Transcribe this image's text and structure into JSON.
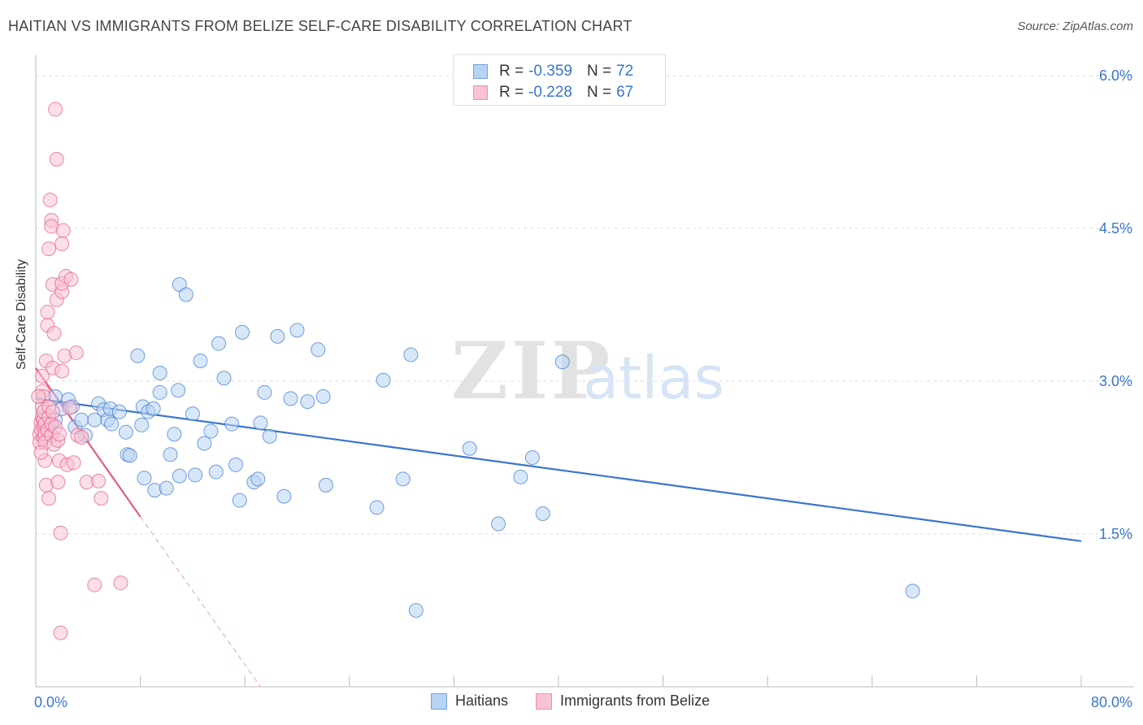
{
  "header": {
    "title": "HAITIAN VS IMMIGRANTS FROM BELIZE SELF-CARE DISABILITY CORRELATION CHART",
    "source": "Source: ZipAtlas.com"
  },
  "watermark": {
    "zip": "ZIP",
    "atlas": "atlas"
  },
  "stats_legend": [
    {
      "r_label": "R =",
      "r_value": "-0.359",
      "n_label": "N =",
      "n_value": "72",
      "color": "#6fa3e0",
      "fill": "#b8d3f3"
    },
    {
      "r_label": "R =",
      "r_value": "-0.228",
      "n_label": "N =",
      "n_value": "67",
      "color": "#ec8fae",
      "fill": "#f8c3d4"
    }
  ],
  "chart_data": {
    "type": "scatter",
    "title": "HAITIAN VS IMMIGRANTS FROM BELIZE SELF-CARE DISABILITY CORRELATION CHART",
    "xlabel": "",
    "ylabel": "Self-Care Disability",
    "xlim": [
      0,
      80
    ],
    "ylim": [
      0,
      6.2
    ],
    "x_tick_labels": [
      "0.0%",
      "80.0%"
    ],
    "y_ticks": [
      1.5,
      3.0,
      4.5,
      6.0
    ],
    "y_tick_labels": [
      "1.5%",
      "3.0%",
      "4.5%",
      "6.0%"
    ],
    "grid": true,
    "series": [
      {
        "name": "Haitians",
        "color": "#3a76c9",
        "fill": "#b8d3f3",
        "points": [
          [
            1.0,
            2.55
          ],
          [
            1.5,
            2.62
          ],
          [
            1.5,
            2.85
          ],
          [
            2.0,
            2.73
          ],
          [
            2.5,
            2.82
          ],
          [
            2.8,
            2.75
          ],
          [
            3.0,
            2.55
          ],
          [
            3.5,
            2.62
          ],
          [
            3.8,
            2.47
          ],
          [
            4.5,
            2.62
          ],
          [
            4.8,
            2.78
          ],
          [
            5.2,
            2.72
          ],
          [
            5.5,
            2.62
          ],
          [
            5.8,
            2.58
          ],
          [
            5.7,
            2.73
          ],
          [
            6.4,
            2.7
          ],
          [
            6.9,
            2.5
          ],
          [
            7.0,
            2.28
          ],
          [
            7.2,
            2.27
          ],
          [
            7.8,
            3.25
          ],
          [
            8.1,
            2.57
          ],
          [
            8.2,
            2.75
          ],
          [
            8.3,
            2.05
          ],
          [
            8.6,
            2.7
          ],
          [
            9.0,
            2.73
          ],
          [
            9.1,
            1.93
          ],
          [
            9.5,
            2.89
          ],
          [
            9.5,
            3.08
          ],
          [
            10.0,
            1.95
          ],
          [
            10.3,
            2.28
          ],
          [
            10.6,
            2.48
          ],
          [
            10.9,
            2.91
          ],
          [
            11.0,
            3.95
          ],
          [
            11.5,
            3.85
          ],
          [
            12.0,
            2.68
          ],
          [
            12.2,
            2.08
          ],
          [
            12.6,
            3.2
          ],
          [
            12.9,
            2.39
          ],
          [
            13.4,
            2.51
          ],
          [
            13.8,
            2.11
          ],
          [
            14.0,
            3.37
          ],
          [
            14.4,
            3.03
          ],
          [
            15.0,
            2.58
          ],
          [
            15.3,
            2.18
          ],
          [
            15.6,
            1.83
          ],
          [
            15.8,
            3.48
          ],
          [
            16.7,
            2.01
          ],
          [
            17.0,
            2.04
          ],
          [
            17.2,
            2.59
          ],
          [
            17.5,
            2.89
          ],
          [
            17.9,
            2.46
          ],
          [
            18.5,
            3.44
          ],
          [
            19.0,
            1.87
          ],
          [
            19.5,
            2.83
          ],
          [
            20.0,
            3.5
          ],
          [
            20.8,
            2.8
          ],
          [
            21.6,
            3.31
          ],
          [
            22.0,
            2.85
          ],
          [
            22.2,
            1.98
          ],
          [
            26.1,
            1.76
          ],
          [
            26.6,
            3.01
          ],
          [
            28.1,
            2.04
          ],
          [
            28.7,
            3.26
          ],
          [
            29.1,
            0.75
          ],
          [
            33.2,
            2.34
          ],
          [
            35.4,
            1.6
          ],
          [
            37.1,
            2.06
          ],
          [
            38.0,
            2.25
          ],
          [
            38.8,
            1.7
          ],
          [
            40.3,
            3.19
          ],
          [
            67.1,
            0.94
          ],
          [
            11.0,
            2.07
          ]
        ],
        "trend": {
          "x0": 0.0,
          "y0": 2.83,
          "x1": 80.0,
          "y1": 1.43
        }
      },
      {
        "name": "Immigrants from Belize",
        "color": "#e05a8a",
        "fill": "#f8c3d4",
        "points": [
          [
            0.3,
            2.48
          ],
          [
            0.3,
            2.4
          ],
          [
            0.4,
            2.53
          ],
          [
            0.4,
            2.6
          ],
          [
            0.5,
            2.65
          ],
          [
            0.5,
            2.75
          ],
          [
            0.5,
            2.9
          ],
          [
            0.5,
            3.05
          ],
          [
            0.6,
            2.45
          ],
          [
            0.6,
            2.55
          ],
          [
            0.6,
            2.62
          ],
          [
            0.6,
            2.7
          ],
          [
            0.6,
            2.85
          ],
          [
            0.7,
            2.58
          ],
          [
            0.7,
            2.48
          ],
          [
            0.7,
            2.4
          ],
          [
            0.7,
            2.22
          ],
          [
            0.8,
            3.2
          ],
          [
            0.8,
            1.98
          ],
          [
            0.9,
            3.55
          ],
          [
            0.9,
            3.68
          ],
          [
            0.9,
            2.52
          ],
          [
            1.0,
            4.3
          ],
          [
            1.0,
            2.65
          ],
          [
            1.0,
            2.75
          ],
          [
            1.0,
            1.85
          ],
          [
            1.1,
            4.78
          ],
          [
            1.2,
            4.58
          ],
          [
            1.2,
            4.52
          ],
          [
            1.2,
            2.47
          ],
          [
            1.2,
            2.58
          ],
          [
            1.3,
            3.95
          ],
          [
            1.3,
            3.13
          ],
          [
            1.3,
            2.7
          ],
          [
            1.4,
            3.47
          ],
          [
            1.4,
            2.38
          ],
          [
            1.5,
            5.67
          ],
          [
            1.5,
            2.55
          ],
          [
            1.6,
            5.18
          ],
          [
            1.6,
            3.8
          ],
          [
            1.7,
            2.01
          ],
          [
            1.7,
            2.42
          ],
          [
            1.8,
            2.48
          ],
          [
            1.8,
            2.22
          ],
          [
            1.9,
            1.51
          ],
          [
            1.9,
            0.53
          ],
          [
            2.0,
            4.35
          ],
          [
            2.0,
            3.88
          ],
          [
            2.0,
            3.96
          ],
          [
            2.0,
            3.1
          ],
          [
            2.1,
            4.48
          ],
          [
            2.2,
            3.25
          ],
          [
            2.3,
            4.03
          ],
          [
            2.4,
            2.18
          ],
          [
            2.6,
            2.74
          ],
          [
            2.7,
            4.0
          ],
          [
            2.9,
            2.2
          ],
          [
            3.1,
            3.28
          ],
          [
            3.2,
            2.47
          ],
          [
            3.5,
            2.45
          ],
          [
            3.9,
            2.01
          ],
          [
            4.5,
            1.0
          ],
          [
            4.8,
            2.02
          ],
          [
            5.0,
            1.85
          ],
          [
            6.5,
            1.02
          ],
          [
            0.2,
            2.85
          ],
          [
            0.4,
            2.3
          ]
        ],
        "trend": {
          "x0": 0.0,
          "y0": 3.13,
          "x1": 8.0,
          "y1": 1.67,
          "dash_to_x": 17.2,
          "dash_to_y": 0.0
        }
      }
    ]
  }
}
